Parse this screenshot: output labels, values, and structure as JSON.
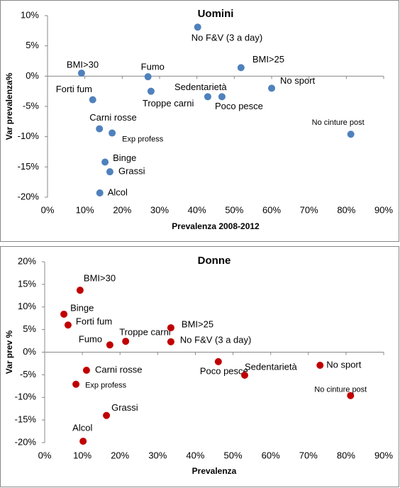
{
  "chart_data": [
    {
      "type": "scatter",
      "title": "Uomini",
      "x_label": "Prevalenza 2008-2012",
      "y_label": "Var prevalenza%",
      "color": "#4f81bd",
      "labels": [
        "No F&V (3 a day)",
        "BMI>30",
        "Fumo",
        "BMI>25",
        "Forti fum",
        "Troppe carni",
        "Sedentarietà",
        "Poco pesce",
        "No sport",
        "Carni rosse",
        "Exp profess",
        "No cinture post",
        "Binge",
        "Grassi",
        "Alcol"
      ],
      "x": [
        40.2,
        9.1,
        26.9,
        51.8,
        12.1,
        27.7,
        42.9,
        46.7,
        60.0,
        13.9,
        17.3,
        81.2,
        15.4,
        16.7,
        14.0
      ],
      "y": [
        8.1,
        0.5,
        -0.1,
        1.4,
        -3.9,
        -2.5,
        -3.4,
        -3.4,
        -2.0,
        -8.7,
        -9.4,
        -9.6,
        -14.2,
        -15.8,
        -19.3
      ],
      "xlim": [
        0,
        90
      ],
      "ylim": [
        -20,
        10
      ],
      "xticks": [
        {
          "value": 0,
          "label": "0%"
        },
        {
          "value": 10,
          "label": "10%"
        },
        {
          "value": 20,
          "label": "20%"
        },
        {
          "value": 30,
          "label": "30%"
        },
        {
          "value": 40,
          "label": "40%"
        },
        {
          "value": 50,
          "label": "50%"
        },
        {
          "value": 60,
          "label": "60%"
        },
        {
          "value": 70,
          "label": "70%"
        },
        {
          "value": 80,
          "label": "80%"
        },
        {
          "value": 90,
          "label": "90%"
        }
      ],
      "yticks": [
        {
          "value": -20,
          "label": "-20%"
        },
        {
          "value": -15,
          "label": "-15%"
        },
        {
          "value": -10,
          "label": "-10%"
        },
        {
          "value": -5,
          "label": "-5%"
        },
        {
          "value": 0,
          "label": "0%"
        },
        {
          "value": 5,
          "label": "5%"
        },
        {
          "value": 10,
          "label": "10%"
        }
      ]
    },
    {
      "type": "scatter",
      "title": "Donne",
      "x_label": "Prevalenza",
      "y_label": "Var prev %",
      "color": "#c00000",
      "labels": [
        "BMI>30",
        "Binge",
        "Forti fum",
        "Fumo",
        "Troppe carni",
        "BMI>25",
        "No F&V (3 a day)",
        "Poco pesce",
        "Sedentarietà",
        "No sport",
        "No cinture post",
        "Carni rosse",
        "Exp profess",
        "Grassi",
        "Alcol"
      ],
      "x": [
        9.4,
        5.1,
        6.2,
        17.3,
        21.5,
        33.5,
        33.5,
        46.1,
        53.1,
        73.1,
        81.2,
        11.1,
        8.3,
        16.4,
        10.2
      ],
      "y": [
        13.7,
        8.4,
        6.0,
        1.6,
        2.4,
        5.4,
        2.3,
        -2.1,
        -5.1,
        -2.9,
        -9.6,
        -4.0,
        -7.1,
        -14.0,
        -19.7
      ],
      "xlim": [
        0,
        90
      ],
      "ylim": [
        -20,
        20
      ],
      "xticks": [
        {
          "value": 0,
          "label": "0%"
        },
        {
          "value": 10,
          "label": "10%"
        },
        {
          "value": 20,
          "label": "20%"
        },
        {
          "value": 30,
          "label": "30%"
        },
        {
          "value": 40,
          "label": "40%"
        },
        {
          "value": 50,
          "label": "50%"
        },
        {
          "value": 60,
          "label": "60%"
        },
        {
          "value": 70,
          "label": "70%"
        },
        {
          "value": 80,
          "label": "80%"
        },
        {
          "value": 90,
          "label": "90%"
        }
      ],
      "yticks": [
        {
          "value": -20,
          "label": "-20%"
        },
        {
          "value": -15,
          "label": "-15%"
        },
        {
          "value": -10,
          "label": "-10%"
        },
        {
          "value": -5,
          "label": "-5%"
        },
        {
          "value": 0,
          "label": "0%"
        },
        {
          "value": 5,
          "label": "5%"
        },
        {
          "value": 10,
          "label": "10%"
        },
        {
          "value": 15,
          "label": "15%"
        },
        {
          "value": 20,
          "label": "20%"
        }
      ]
    }
  ]
}
